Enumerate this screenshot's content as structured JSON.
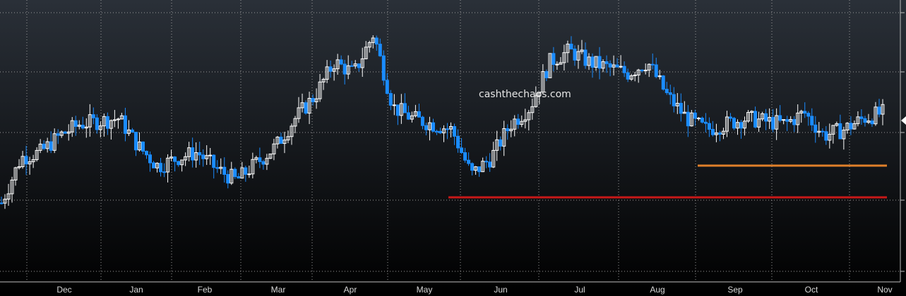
{
  "watermark": "cashthechaos.com",
  "chart_data": {
    "type": "candlestick",
    "title": "",
    "xlabel": "",
    "ylabel": "",
    "grid": true,
    "x_tick_labels": [
      "Dec",
      "Jan",
      "Feb",
      "Mar",
      "Apr",
      "May",
      "Jun",
      "Jul",
      "Aug",
      "Sep",
      "Oct",
      "Nov"
    ],
    "y_range_note": "price axis values not printed; values expressed on normalized 0-100 scale",
    "ylim": [
      0,
      100
    ],
    "series": [
      {
        "ohlc_sampled_weekly": [
          {
            "x": "Nov",
            "close": 28
          },
          {
            "x": "Dec",
            "close": 44
          },
          {
            "x": "Dec",
            "close": 46
          },
          {
            "x": "Dec",
            "close": 52
          },
          {
            "x": "Dec",
            "close": 56
          },
          {
            "x": "Jan",
            "close": 57
          },
          {
            "x": "Jan",
            "close": 58
          },
          {
            "x": "Jan",
            "close": 48
          },
          {
            "x": "Jan",
            "close": 41
          },
          {
            "x": "Feb",
            "close": 44
          },
          {
            "x": "Feb",
            "close": 46
          },
          {
            "x": "Feb",
            "close": 40
          },
          {
            "x": "Feb",
            "close": 36
          },
          {
            "x": "Mar",
            "close": 42
          },
          {
            "x": "Mar",
            "close": 48
          },
          {
            "x": "Mar",
            "close": 58
          },
          {
            "x": "Mar",
            "close": 66
          },
          {
            "x": "Apr",
            "close": 78
          },
          {
            "x": "Apr",
            "close": 74
          },
          {
            "x": "Apr",
            "close": 88
          },
          {
            "x": "Apr",
            "close": 62
          },
          {
            "x": "May",
            "close": 58
          },
          {
            "x": "May",
            "close": 56
          },
          {
            "x": "May",
            "close": 54
          },
          {
            "x": "May",
            "close": 38
          },
          {
            "x": "Jun",
            "close": 44
          },
          {
            "x": "Jun",
            "close": 56
          },
          {
            "x": "Jun",
            "close": 62
          },
          {
            "x": "Jun",
            "close": 78
          },
          {
            "x": "Jul",
            "close": 82
          },
          {
            "x": "Jul",
            "close": 78
          },
          {
            "x": "Jul",
            "close": 76
          },
          {
            "x": "Jul",
            "close": 74
          },
          {
            "x": "Aug",
            "close": 78
          },
          {
            "x": "Aug",
            "close": 66
          },
          {
            "x": "Aug",
            "close": 58
          },
          {
            "x": "Aug",
            "close": 54
          },
          {
            "x": "Sep",
            "close": 56
          },
          {
            "x": "Sep",
            "close": 58
          },
          {
            "x": "Sep",
            "close": 57
          },
          {
            "x": "Sep",
            "close": 56
          },
          {
            "x": "Oct",
            "close": 60
          },
          {
            "x": "Oct",
            "close": 52
          },
          {
            "x": "Oct",
            "close": 54
          },
          {
            "x": "Oct",
            "close": 58
          },
          {
            "x": "Nov",
            "close": 60
          }
        ]
      }
    ],
    "horizontal_lines": [
      {
        "color": "#c81818",
        "level": 36,
        "from": "May",
        "to": "Nov"
      },
      {
        "color": "#e0802a",
        "level": 48,
        "from": "Aug",
        "to": "Nov"
      }
    ],
    "colors": {
      "up_candle": "#ffffff",
      "down_candle": "#1a8cff",
      "background_top": "#2a3038",
      "background_bottom": "#000000",
      "grid": "#9a9a9a"
    }
  }
}
